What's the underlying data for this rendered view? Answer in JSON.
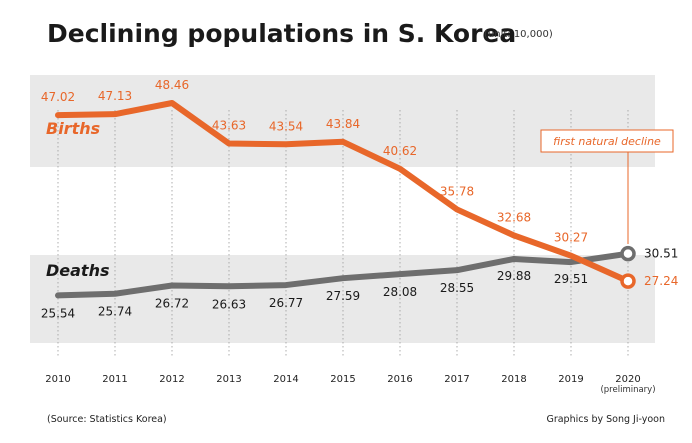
{
  "chart_data": {
    "type": "line",
    "title": "Declining populations in S. Korea",
    "unit_note": "(unit: 10,000)",
    "categories": [
      "2010",
      "2011",
      "2012",
      "2013",
      "2014",
      "2015",
      "2016",
      "2017",
      "2018",
      "2019",
      "2020"
    ],
    "x_sublabel": "(preliminary)",
    "series": [
      {
        "name": "Births",
        "color": "#e8672a",
        "values": [
          47.02,
          47.13,
          48.46,
          43.63,
          43.54,
          43.84,
          40.62,
          35.78,
          32.68,
          30.27,
          27.24
        ],
        "labels": [
          "47.02",
          "47.13",
          "48.46",
          "43.63",
          "43.54",
          "43.84",
          "40.62",
          "35.78",
          "32.68",
          "30.27",
          "27.24"
        ]
      },
      {
        "name": "Deaths",
        "color": "#6e6e6e",
        "values": [
          25.54,
          25.74,
          26.72,
          26.63,
          26.77,
          27.59,
          28.08,
          28.55,
          29.88,
          29.51,
          30.51
        ],
        "labels": [
          "25.54",
          "25.74",
          "26.72",
          "26.63",
          "26.77",
          "27.59",
          "28.08",
          "28.55",
          "29.88",
          "29.51",
          "30.51"
        ]
      }
    ],
    "annotation": "first natural decline",
    "source": "(Source: Statistics Korea)",
    "credit": "Graphics by Song Ji-yoon"
  }
}
